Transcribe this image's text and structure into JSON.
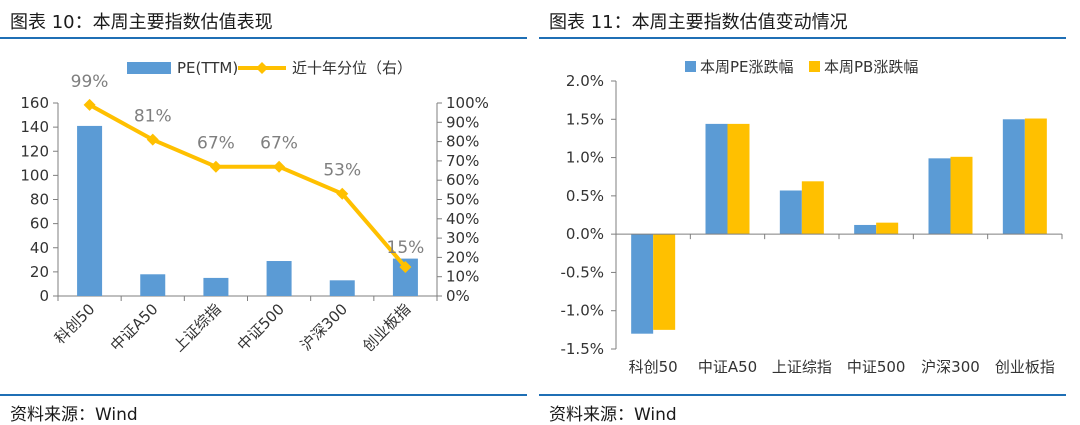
{
  "left": {
    "title": "图表 10：本周主要指数估值表现",
    "source": "资料来源：Wind",
    "colors": {
      "bar": "#5b9bd5",
      "line": "#ffc000",
      "axis": "#7f7f7f"
    },
    "chart_data": {
      "type": "bar+line",
      "categories": [
        "科创50",
        "中证A50",
        "上证综指",
        "中证500",
        "沪深300",
        "创业板指"
      ],
      "series": [
        {
          "name": "PE(TTM)",
          "type": "bar",
          "axis": "left",
          "values": [
            141,
            18,
            15,
            29,
            13,
            31
          ]
        },
        {
          "name": "近十年分位（右）",
          "type": "line",
          "axis": "right",
          "values": [
            99,
            81,
            67,
            67,
            53,
            15
          ],
          "labels": [
            "99%",
            "81%",
            "67%",
            "67%",
            "53%",
            "15%"
          ]
        }
      ],
      "y_left": {
        "ylim": [
          0,
          160
        ],
        "ticks": [
          "0",
          "20",
          "40",
          "60",
          "80",
          "100",
          "120",
          "140",
          "160"
        ]
      },
      "y_right": {
        "ylim": [
          0,
          100
        ],
        "ticks": [
          "0%",
          "10%",
          "20%",
          "30%",
          "40%",
          "50%",
          "60%",
          "70%",
          "80%",
          "90%",
          "100%"
        ]
      },
      "legend": "top",
      "grid": false
    }
  },
  "right": {
    "title": "图表 11：本周主要指数估值变动情况",
    "source": "资料来源：Wind",
    "colors": {
      "pe": "#5b9bd5",
      "pb": "#ffc000",
      "axis": "#7f7f7f"
    },
    "chart_data": {
      "type": "bar",
      "categories": [
        "科创50",
        "中证A50",
        "上证综指",
        "中证500",
        "沪深300",
        "创业板指"
      ],
      "series": [
        {
          "name": "本周PE涨跌幅",
          "values": [
            -1.3,
            1.44,
            0.57,
            0.12,
            0.99,
            1.5
          ]
        },
        {
          "name": "本周PB涨跌幅",
          "values": [
            -1.25,
            1.44,
            0.69,
            0.15,
            1.01,
            1.51
          ]
        }
      ],
      "ylim": [
        -1.5,
        2.0
      ],
      "ticks": [
        "-1.5%",
        "-1.0%",
        "-0.5%",
        "0.0%",
        "0.5%",
        "1.0%",
        "1.5%",
        "2.0%"
      ],
      "legend": "top",
      "grid": false
    }
  }
}
